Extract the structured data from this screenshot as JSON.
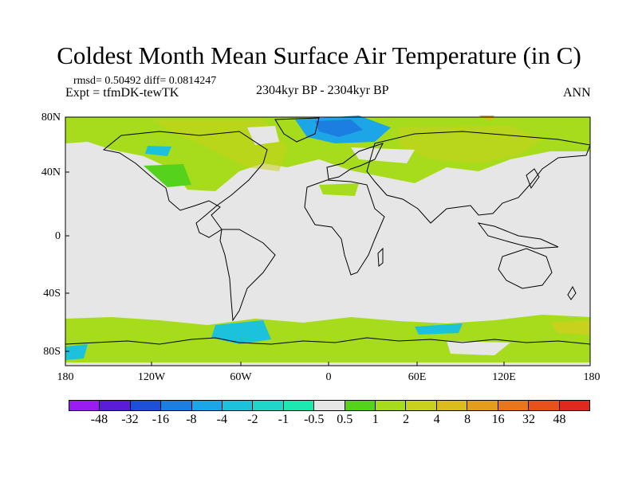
{
  "title": "Coldest Month Mean Surface Air Temperature (in C)",
  "stats": "rmsd= 0.50492 diff= 0.0814247",
  "expt": "Expt = tfmDK-tewTK",
  "period": "2304kyr BP - 2304kyr BP",
  "season": "ANN",
  "lat_labels": [
    "80N",
    "40N",
    "0",
    "40S",
    "80S"
  ],
  "lon_labels": [
    "180",
    "120W",
    "60W",
    "0",
    "60E",
    "120E",
    "180"
  ],
  "colorbar": {
    "labels": [
      "-48",
      "-32",
      "-16",
      "-8",
      "-4",
      "-2",
      "-1",
      "-0.5",
      "0.5",
      "1",
      "2",
      "4",
      "8",
      "16",
      "32",
      "48"
    ],
    "colors": [
      "#9a1cf0",
      "#5a1cd8",
      "#1c50d8",
      "#1c7ee0",
      "#1ca6e8",
      "#1cc2dc",
      "#20d6c8",
      "#1ce8b0",
      "#e6e6e6",
      "#54d21c",
      "#a6dc1c",
      "#c8d21c",
      "#dcbc1c",
      "#e49c1c",
      "#e8761c",
      "#e8501c",
      "#e0281c"
    ]
  }
}
